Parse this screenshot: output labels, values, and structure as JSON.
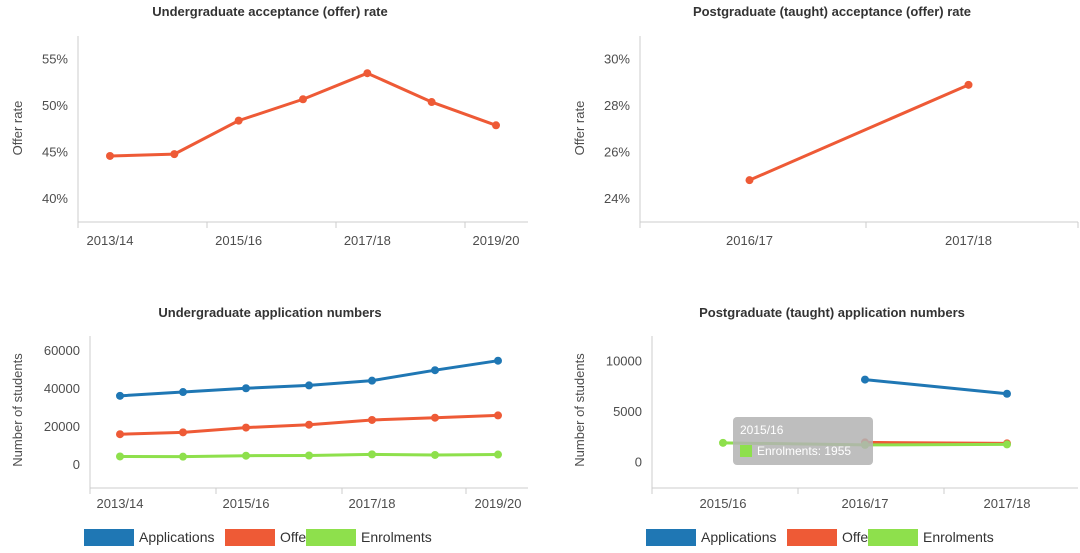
{
  "colors": {
    "applications": "#1f77b4",
    "offers": "#ee5a36",
    "enrolments": "#8ee04c",
    "axis": "#cccccc",
    "tooltip_bg": "#b3b3b3"
  },
  "chart_data": [
    {
      "type": "line",
      "title": "Undergraduate acceptance (offer) rate",
      "ylabel": "Offer rate",
      "xlabel": "",
      "x": [
        "2013/14",
        "2014/15",
        "2015/16",
        "2016/17",
        "2017/18",
        "2018/19",
        "2019/20"
      ],
      "x_tick_labels": [
        "2013/14",
        "",
        "2015/16",
        "",
        "2017/18",
        "",
        "2019/20"
      ],
      "yticks": [
        40,
        45,
        50,
        55
      ],
      "ytick_format": "percent",
      "ylim": [
        37.5,
        57.5
      ],
      "series": [
        {
          "key": "offers",
          "values": [
            44.6,
            44.8,
            48.4,
            50.7,
            53.5,
            50.4,
            47.9
          ]
        }
      ]
    },
    {
      "type": "line",
      "title": "Postgraduate (taught) acceptance (offer) rate",
      "ylabel": "Offer rate",
      "xlabel": "",
      "x": [
        "2016/17",
        "2017/18"
      ],
      "x_tick_labels": [
        "2016/17",
        "2017/18"
      ],
      "yticks": [
        24,
        26,
        28,
        30
      ],
      "ytick_format": "percent",
      "ylim": [
        23,
        31
      ],
      "series": [
        {
          "key": "offers",
          "values": [
            24.8,
            28.9
          ]
        }
      ]
    },
    {
      "type": "line",
      "title": "Undergraduate application numbers",
      "ylabel": "Number of students",
      "xlabel": "",
      "x": [
        "2013/14",
        "2014/15",
        "2015/16",
        "2016/17",
        "2017/18",
        "2018/19",
        "2019/20"
      ],
      "x_tick_labels": [
        "2013/14",
        "",
        "2015/16",
        "",
        "2017/18",
        "",
        "2019/20"
      ],
      "yticks": [
        0,
        20000,
        40000,
        60000
      ],
      "ytick_format": "plain",
      "ylim": [
        -12000,
        68000
      ],
      "series": [
        {
          "key": "applications",
          "values": [
            36500,
            38500,
            40500,
            42000,
            44500,
            50000,
            55000
          ]
        },
        {
          "key": "offers",
          "values": [
            16300,
            17300,
            19800,
            21300,
            23800,
            25000,
            26200
          ]
        },
        {
          "key": "enrolments",
          "values": [
            4600,
            4500,
            5000,
            5100,
            5700,
            5400,
            5600
          ]
        }
      ],
      "legend": [
        "Applications",
        "Offers",
        "Enrolments"
      ],
      "legend_position": "bottom"
    },
    {
      "type": "line",
      "title": "Postgraduate (taught) application numbers",
      "ylabel": "Number of students",
      "xlabel": "",
      "x": [
        "2015/16",
        "2016/17",
        "2017/18"
      ],
      "x_tick_labels": [
        "2015/16",
        "2016/17",
        "2017/18"
      ],
      "yticks": [
        0,
        5000,
        10000
      ],
      "ytick_format": "plain",
      "ylim": [
        -2500,
        12500
      ],
      "series": [
        {
          "key": "applications",
          "values": [
            null,
            8200,
            6800
          ]
        },
        {
          "key": "offers",
          "values": [
            null,
            2000,
            1900
          ]
        },
        {
          "key": "enrolments",
          "values": [
            1955,
            1750,
            1800
          ]
        }
      ],
      "legend": [
        "Applications",
        "Offers",
        "Enrolments"
      ],
      "legend_position": "bottom",
      "tooltip": {
        "line1": "2015/16",
        "line2": "Enrolments: 1955"
      }
    }
  ]
}
